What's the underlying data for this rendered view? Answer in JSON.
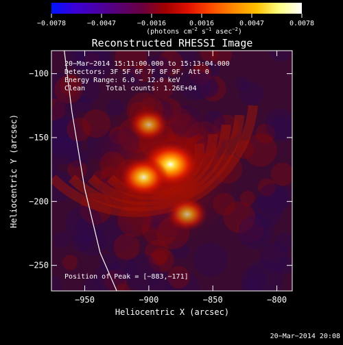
{
  "colorbar": {
    "tick_labels": [
      "−0.0078",
      "−0.0047",
      "−0.0016",
      "0.0016",
      "0.0047",
      "0.0078"
    ],
    "unit_text": "(photons cm",
    "unit_sup1": "−2",
    "unit_mid": " s",
    "unit_sup2": "−1",
    "unit_mid2": " asec",
    "unit_sup3": "−2",
    "unit_end": ")",
    "range": [
      -0.0078,
      0.0078
    ],
    "colors": [
      "#0014ff",
      "#3a00d8",
      "#4a00a8",
      "#5a0070",
      "#6a0040",
      "#a00000",
      "#e01000",
      "#ff4a00",
      "#ff8a00",
      "#ffc000",
      "#ffff80",
      "#ffffff"
    ]
  },
  "chart_data": {
    "type": "heatmap",
    "title": "Reconstructed RHESSI Image",
    "xlabel": "Heliocentric X (arcsec)",
    "ylabel": "Heliocentric Y (arcsec)",
    "xlim": [
      -976,
      -788
    ],
    "ylim": [
      -270,
      -82
    ],
    "x_ticks": [
      -950,
      -900,
      -850,
      -800
    ],
    "x_tick_labels": [
      "−950",
      "−900",
      "−850",
      "−800"
    ],
    "y_ticks": [
      -100,
      -150,
      -200,
      -250
    ],
    "y_tick_labels": [
      "−100",
      "−150",
      "−200",
      "−250"
    ],
    "annotations": [
      "20−Mar−2014 15:11:00.000 to 15:13:04.000",
      "Detectors: 3F 5F 6F 7F 8F 9F, Att 0",
      "Energy Range: 6.0 − 12.0 keV",
      "Clean     Total counts: 1.26E+04"
    ],
    "peak_label": "Position of Peak = [−883,−171]",
    "peak": {
      "x": -883,
      "y": -171,
      "value": 0.0078
    },
    "sources": [
      {
        "x": -883,
        "y": -171,
        "value": 0.0078
      },
      {
        "x": -904,
        "y": -181,
        "value": 0.0055
      },
      {
        "x": -870,
        "y": -210,
        "value": 0.003
      },
      {
        "x": -900,
        "y": -140,
        "value": 0.0028
      }
    ],
    "limb": [
      [
        -966,
        -82
      ],
      [
        -960,
        -130
      ],
      [
        -950,
        -190
      ],
      [
        -938,
        -240
      ],
      [
        -925,
        -270
      ]
    ]
  },
  "footer": {
    "timestamp": "20−Mar−2014 20:08"
  }
}
